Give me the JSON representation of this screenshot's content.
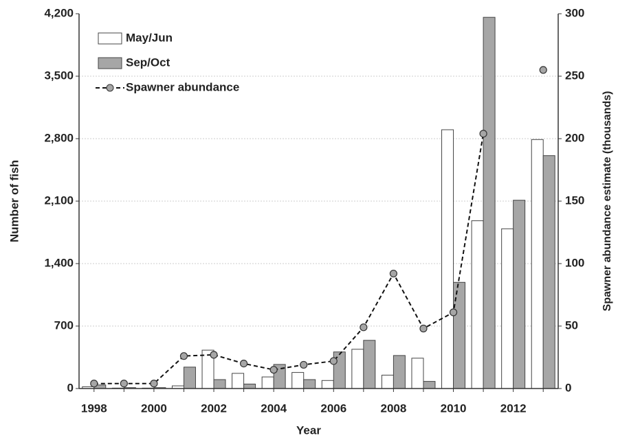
{
  "chart_data": {
    "type": "bar",
    "x_label": "Year",
    "y_label": "Number of fish",
    "y2_label": "Spawner abundance estimate (thousands)",
    "categories": [
      "1998",
      null,
      "2000",
      null,
      "2002",
      null,
      "2004",
      null,
      "2006",
      null,
      "2008",
      null,
      "2010",
      null,
      "2012",
      null
    ],
    "series": [
      {
        "name": "May/Jun",
        "type": "bar",
        "color": "#ffffff",
        "values": [
          20,
          5,
          5,
          30,
          430,
          170,
          130,
          180,
          90,
          440,
          150,
          340,
          2900,
          1880,
          1790,
          2790
        ]
      },
      {
        "name": "Sep/Oct",
        "type": "bar",
        "color": "#a6a6a6",
        "values": [
          40,
          10,
          10,
          240,
          100,
          50,
          270,
          100,
          410,
          540,
          370,
          80,
          1190,
          4160,
          2110,
          2610
        ]
      },
      {
        "name": "Spawner abundance",
        "type": "line",
        "axis": "y2",
        "color": "#a6a6a6",
        "values": [
          4,
          4,
          4,
          26,
          27,
          20,
          15,
          19,
          22,
          49,
          92,
          48,
          61,
          204,
          null,
          255
        ]
      }
    ],
    "ylim": [
      0,
      4200
    ],
    "yticks": [
      0,
      700,
      {
        "value": 1400,
        "label": "1,400"
      },
      {
        "value": 2100,
        "label": "2,100"
      },
      {
        "value": 2800,
        "label": "2,800"
      },
      {
        "value": 3500,
        "label": "3,500"
      },
      {
        "value": 4200,
        "label": "4,200"
      }
    ],
    "y2lim": [
      0,
      300
    ],
    "y2ticks": [
      0,
      50,
      100,
      150,
      200,
      250,
      300
    ],
    "grid": true,
    "legend": "upper left"
  }
}
